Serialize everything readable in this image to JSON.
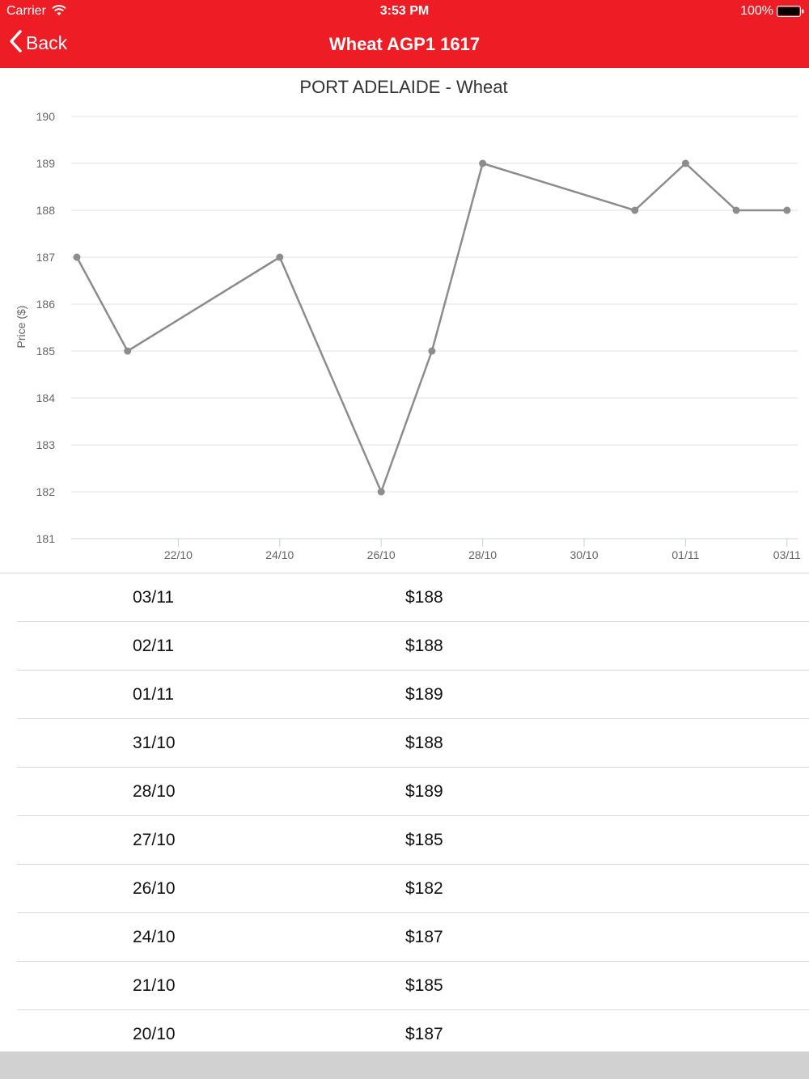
{
  "status": {
    "carrier": "Carrier",
    "time": "3:53 PM",
    "battery": "100%"
  },
  "nav": {
    "back_label": "Back",
    "title": "Wheat AGP1 1617"
  },
  "colors": {
    "brand_red": "#ee1c25",
    "series_gray": "#8c8c8c"
  },
  "chart_data": {
    "type": "line",
    "title": "PORT ADELAIDE - Wheat",
    "ylabel": "Price ($)",
    "xlabel": "",
    "ylim": [
      181,
      190
    ],
    "yticks": [
      "190",
      "189",
      "188",
      "187",
      "186",
      "185",
      "184",
      "183",
      "182",
      "181"
    ],
    "xticks": [
      "22/10",
      "24/10",
      "26/10",
      "28/10",
      "30/10",
      "01/11",
      "03/11"
    ],
    "x": [
      "20/10",
      "21/10",
      "24/10",
      "26/10",
      "27/10",
      "28/10",
      "31/10",
      "01/11",
      "02/11",
      "03/11"
    ],
    "values": [
      187,
      185,
      187,
      182,
      185,
      189,
      188,
      189,
      188,
      188
    ],
    "grid": true
  },
  "table": {
    "rows": [
      {
        "date": "03/11",
        "price": "$188"
      },
      {
        "date": "02/11",
        "price": "$188"
      },
      {
        "date": "01/11",
        "price": "$189"
      },
      {
        "date": "31/10",
        "price": "$188"
      },
      {
        "date": "28/10",
        "price": "$189"
      },
      {
        "date": "27/10",
        "price": "$185"
      },
      {
        "date": "26/10",
        "price": "$182"
      },
      {
        "date": "24/10",
        "price": "$187"
      },
      {
        "date": "21/10",
        "price": "$185"
      },
      {
        "date": "20/10",
        "price": "$187"
      }
    ]
  }
}
